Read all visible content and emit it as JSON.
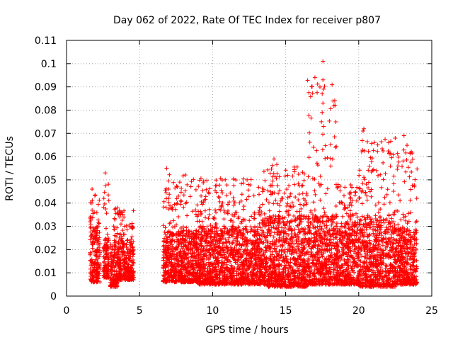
{
  "chart_data": {
    "type": "scatter",
    "title": "Day 062 of 2022, Rate Of TEC Index for receiver p807",
    "xlabel": "GPS time / hours",
    "ylabel": "ROTI / TECUs",
    "xlim": [
      0,
      25
    ],
    "ylim": [
      0,
      0.11
    ],
    "x_ticks": [
      0,
      5,
      10,
      15,
      20,
      25
    ],
    "y_ticks": [
      0,
      0.01,
      0.02,
      0.03,
      0.04,
      0.05,
      0.06,
      0.07,
      0.08,
      0.09,
      0.1,
      0.11
    ],
    "x_tick_labels": [
      "0",
      "5",
      "10",
      "15",
      "20",
      "25"
    ],
    "y_tick_labels": [
      "0",
      "0.01",
      "0.02",
      "0.03",
      "0.04",
      "0.05",
      "0.06",
      "0.07",
      "0.08",
      "0.09",
      "0.1",
      "0.11"
    ],
    "grid": true,
    "marker": "+",
    "color": "#ff0000",
    "series": [
      {
        "name": "p807",
        "segments": [
          {
            "x_range": [
              1.6,
              2.3
            ],
            "typical": [
              0.006,
              0.03
            ],
            "peak": 0.046
          },
          {
            "x_range": [
              2.5,
              2.9
            ],
            "typical": [
              0.008,
              0.025
            ],
            "peak": 0.053
          },
          {
            "x_range": [
              3.0,
              3.5
            ],
            "typical": [
              0.004,
              0.025
            ],
            "peak": 0.04
          },
          {
            "x_range": [
              3.5,
              4.6
            ],
            "typical": [
              0.007,
              0.025
            ],
            "peak": 0.04
          },
          {
            "x_range": [
              6.6,
              9.0
            ],
            "typical": [
              0.006,
              0.028
            ],
            "peak": 0.055
          },
          {
            "x_range": [
              9.0,
              13.5
            ],
            "typical": [
              0.005,
              0.03
            ],
            "peak": 0.053
          },
          {
            "x_range": [
              13.5,
              16.5
            ],
            "typical": [
              0.004,
              0.035
            ],
            "peak": 0.059
          },
          {
            "x_range": [
              16.5,
              18.5
            ],
            "typical": [
              0.005,
              0.035
            ],
            "peak": 0.101
          },
          {
            "x_range": [
              18.5,
              20.0
            ],
            "typical": [
              0.005,
              0.032
            ],
            "peak": 0.05
          },
          {
            "x_range": [
              20.0,
              22.5
            ],
            "typical": [
              0.004,
              0.035
            ],
            "peak": 0.072
          },
          {
            "x_range": [
              22.5,
              24.0
            ],
            "typical": [
              0.005,
              0.03
            ],
            "peak": 0.069
          }
        ],
        "notable_points": [
          {
            "x": 17.55,
            "y": 0.101
          },
          {
            "x": 17.55,
            "y": 0.093
          },
          {
            "x": 17.6,
            "y": 0.089
          },
          {
            "x": 17.5,
            "y": 0.087
          },
          {
            "x": 17.55,
            "y": 0.083
          },
          {
            "x": 17.5,
            "y": 0.079
          },
          {
            "x": 17.45,
            "y": 0.075
          },
          {
            "x": 16.9,
            "y": 0.064
          },
          {
            "x": 20.35,
            "y": 0.072
          },
          {
            "x": 20.3,
            "y": 0.071
          },
          {
            "x": 23.1,
            "y": 0.069
          },
          {
            "x": 22.05,
            "y": 0.066
          },
          {
            "x": 21.3,
            "y": 0.065
          },
          {
            "x": 23.6,
            "y": 0.062
          },
          {
            "x": 20.2,
            "y": 0.062
          },
          {
            "x": 14.2,
            "y": 0.059
          },
          {
            "x": 6.85,
            "y": 0.055
          },
          {
            "x": 2.65,
            "y": 0.053
          },
          {
            "x": 1.75,
            "y": 0.046
          }
        ]
      }
    ]
  }
}
